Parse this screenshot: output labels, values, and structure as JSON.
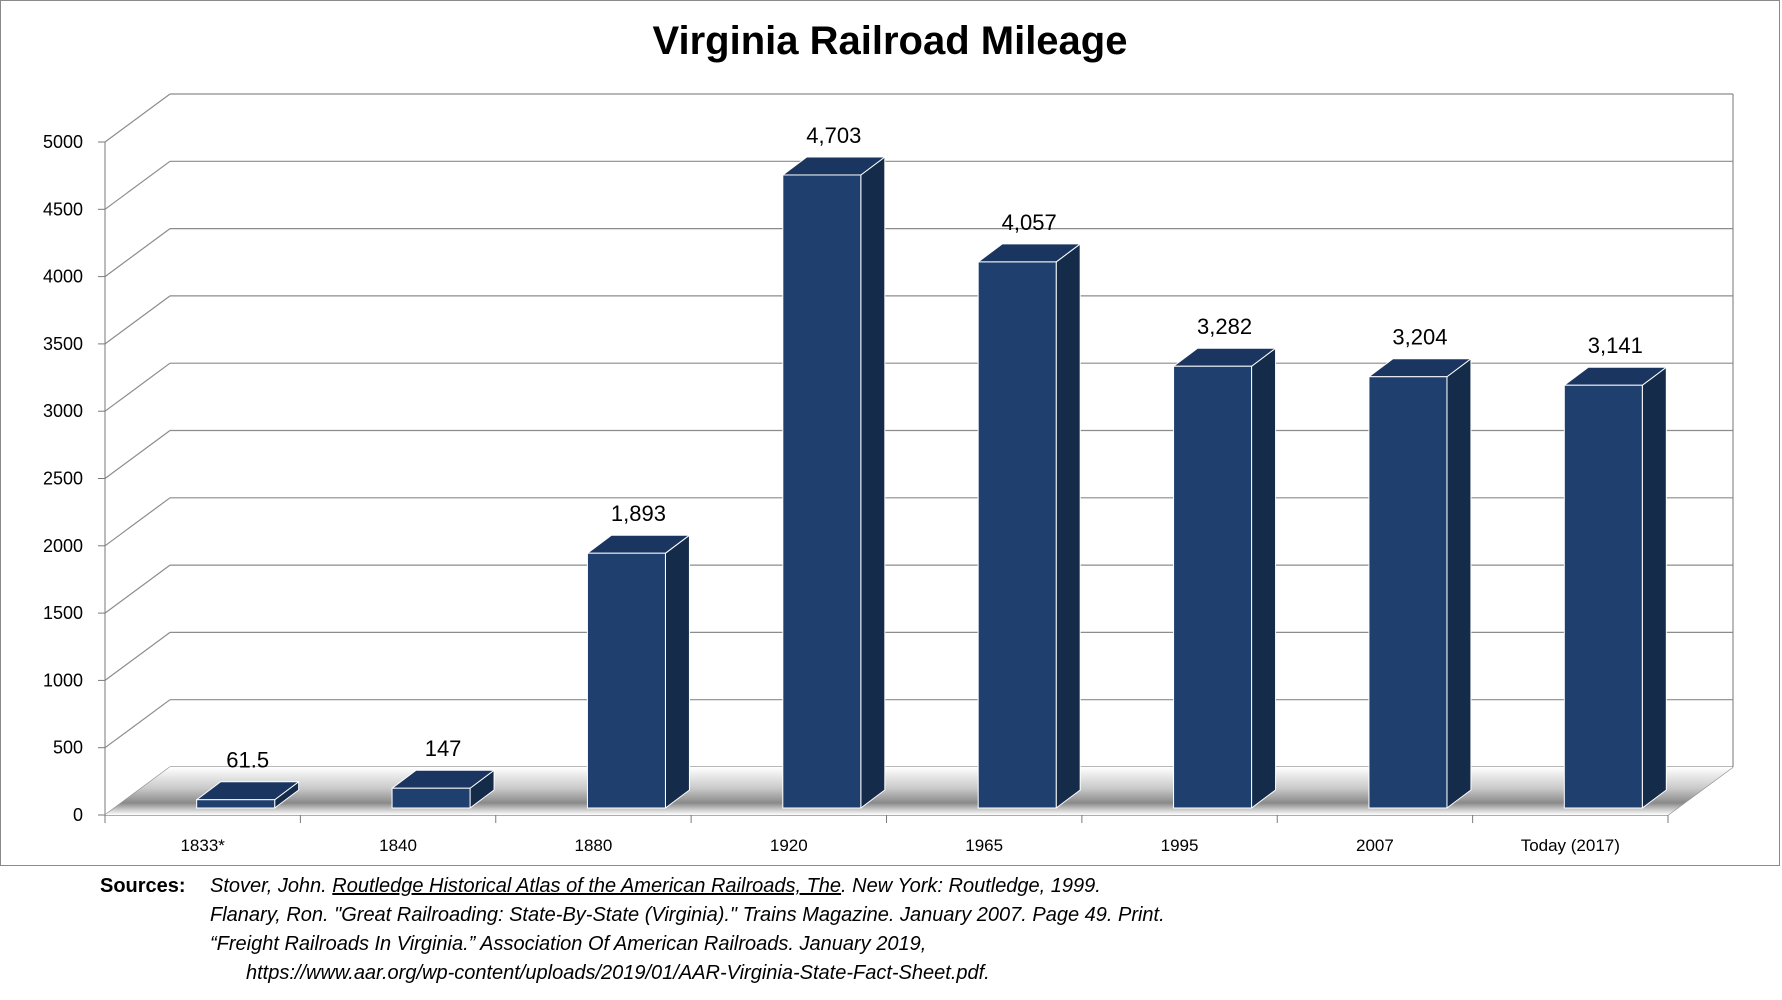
{
  "chart_data": {
    "type": "bar",
    "title": "Virginia Railroad Mileage",
    "xlabel": "",
    "ylabel": "",
    "ylim": [
      0,
      5000
    ],
    "yticks": [
      "0",
      "500",
      "1000",
      "1500",
      "2000",
      "2500",
      "3000",
      "3500",
      "4000",
      "4500",
      "5000"
    ],
    "categories": [
      "1833*",
      "1840",
      "1880",
      "1920",
      "1965",
      "1995",
      "2007",
      "Today  (2017)"
    ],
    "values": [
      61.5,
      147,
      1893,
      4703,
      4057,
      3282,
      3204,
      3141
    ],
    "data_labels": [
      "61.5",
      "147",
      "1,893",
      "4,703",
      "4,057",
      "3,282",
      "3,204",
      "3,141"
    ],
    "grid": true,
    "style": "3d-column",
    "colors": {
      "bar_front": "#1f3f6e",
      "bar_side": "#142b4a",
      "bar_top": "#1a3660",
      "grid": "#8c8c8c",
      "axis": "#7a7a7a"
    }
  },
  "sources": {
    "heading": "Sources:",
    "line1_pre": "Stover, John. ",
    "line1_title": "Routledge Historical Atlas of the American Railroads, The",
    "line1_post": ". New York: Routledge, 1999.",
    "line2": "Flanary, Ron. \"Great Railroading: State-By-State (Virginia).\" Trains Magazine. January 2007. Page 49. Print.",
    "line3": "“Freight Railroads In Virginia.” Association Of American Railroads. January 2019,",
    "line4": "https://www.aar.org/wp-content/uploads/2019/01/AAR-Virginia-State-Fact-Sheet.pdf."
  }
}
